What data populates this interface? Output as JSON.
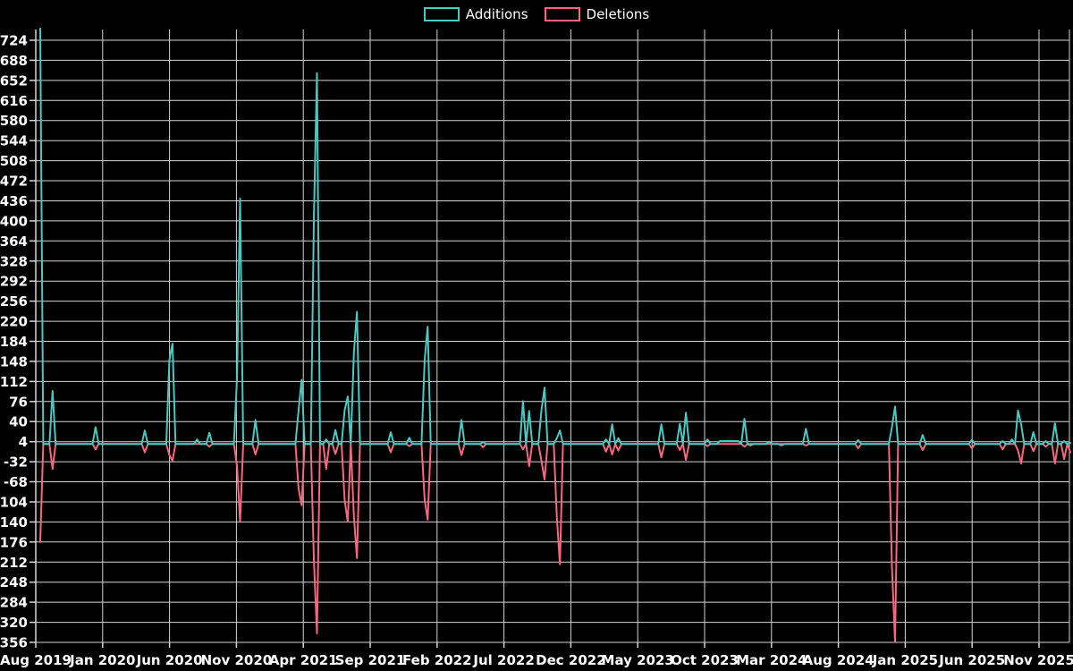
{
  "legend": {
    "additions_label": "Additions",
    "deletions_label": "Deletions"
  },
  "colors": {
    "background": "#000000",
    "grid": "#d4d4d4",
    "text": "#ffffff",
    "additions": "#4ac8c2",
    "deletions": "#f8677f"
  },
  "chart_data": {
    "type": "line",
    "title": "",
    "xlabel": "",
    "ylabel": "",
    "legend_position": "top-center",
    "grid": true,
    "series": [
      {
        "name": "Additions",
        "color_key": "additions"
      },
      {
        "name": "Deletions",
        "color_key": "deletions"
      }
    ],
    "x_ticks": [
      "Aug 2019",
      "Jan 2020",
      "Jun 2020",
      "Nov 2020",
      "Apr 2021",
      "Sep 2021",
      "Feb 2022",
      "Jul 2022",
      "Dec 2022",
      "May 2023",
      "Oct 2023",
      "Mar 2024",
      "Aug 2024",
      "Jan 2025",
      "Jun 2025",
      "Nov 2025"
    ],
    "y_ticks": [
      724,
      688,
      652,
      616,
      580,
      544,
      508,
      472,
      436,
      400,
      364,
      328,
      292,
      256,
      220,
      184,
      148,
      112,
      76,
      40,
      4,
      -32,
      -68,
      -104,
      -140,
      -176,
      -212,
      -248,
      -284,
      -320,
      -356
    ],
    "ylim": [
      -356,
      724
    ],
    "weeks_total": 336,
    "points_format": [
      "week_index",
      "additions",
      "deletions"
    ],
    "points": [
      [
        0,
        745,
        -176
      ],
      [
        4,
        95,
        -45
      ],
      [
        18,
        30,
        -10
      ],
      [
        34,
        24,
        -15
      ],
      [
        42,
        150,
        -20
      ],
      [
        43,
        180,
        -30
      ],
      [
        51,
        8,
        0
      ],
      [
        55,
        20,
        -5
      ],
      [
        64,
        120,
        -40
      ],
      [
        65,
        440,
        -140
      ],
      [
        70,
        43,
        -19
      ],
      [
        84,
        60,
        -80
      ],
      [
        85,
        115,
        -110
      ],
      [
        89,
        410,
        -211
      ],
      [
        90,
        665,
        -340
      ],
      [
        93,
        8,
        -45
      ],
      [
        96,
        25,
        -18
      ],
      [
        99,
        60,
        -100
      ],
      [
        100,
        85,
        -140
      ],
      [
        102,
        165,
        -130
      ],
      [
        103,
        237,
        -205
      ],
      [
        114,
        21,
        -15
      ],
      [
        120,
        11,
        -4
      ],
      [
        125,
        150,
        -100
      ],
      [
        126,
        210,
        -136
      ],
      [
        137,
        43,
        -20
      ],
      [
        144,
        3,
        -6
      ],
      [
        157,
        77,
        -10
      ],
      [
        159,
        59,
        -40
      ],
      [
        163,
        60,
        -30
      ],
      [
        164,
        101,
        -64
      ],
      [
        168,
        10,
        -130
      ],
      [
        169,
        24,
        -216
      ],
      [
        184,
        8,
        -14
      ],
      [
        186,
        35,
        -19
      ],
      [
        188,
        10,
        -12
      ],
      [
        202,
        35,
        -24
      ],
      [
        208,
        36,
        -11
      ],
      [
        210,
        56,
        -29
      ],
      [
        217,
        8,
        -4
      ],
      [
        221,
        5,
        0
      ],
      [
        222,
        5,
        0
      ],
      [
        223,
        5,
        0
      ],
      [
        224,
        5,
        0
      ],
      [
        225,
        5,
        0
      ],
      [
        226,
        5,
        0
      ],
      [
        227,
        5,
        0
      ],
      [
        229,
        45,
        -5
      ],
      [
        231,
        0,
        -3
      ],
      [
        237,
        4,
        0
      ],
      [
        241,
        0,
        -3
      ],
      [
        249,
        27,
        -3
      ],
      [
        266,
        7,
        -8
      ],
      [
        277,
        30,
        -219
      ],
      [
        278,
        67,
        -355
      ],
      [
        287,
        16,
        -11
      ],
      [
        303,
        7,
        -8
      ],
      [
        313,
        5,
        -10
      ],
      [
        316,
        8,
        0
      ],
      [
        318,
        60,
        -12
      ],
      [
        319,
        35,
        -35
      ],
      [
        323,
        21,
        -13
      ],
      [
        327,
        5,
        -5
      ],
      [
        330,
        37,
        -35
      ],
      [
        333,
        5,
        -27
      ],
      [
        335,
        2,
        -15
      ]
    ]
  }
}
